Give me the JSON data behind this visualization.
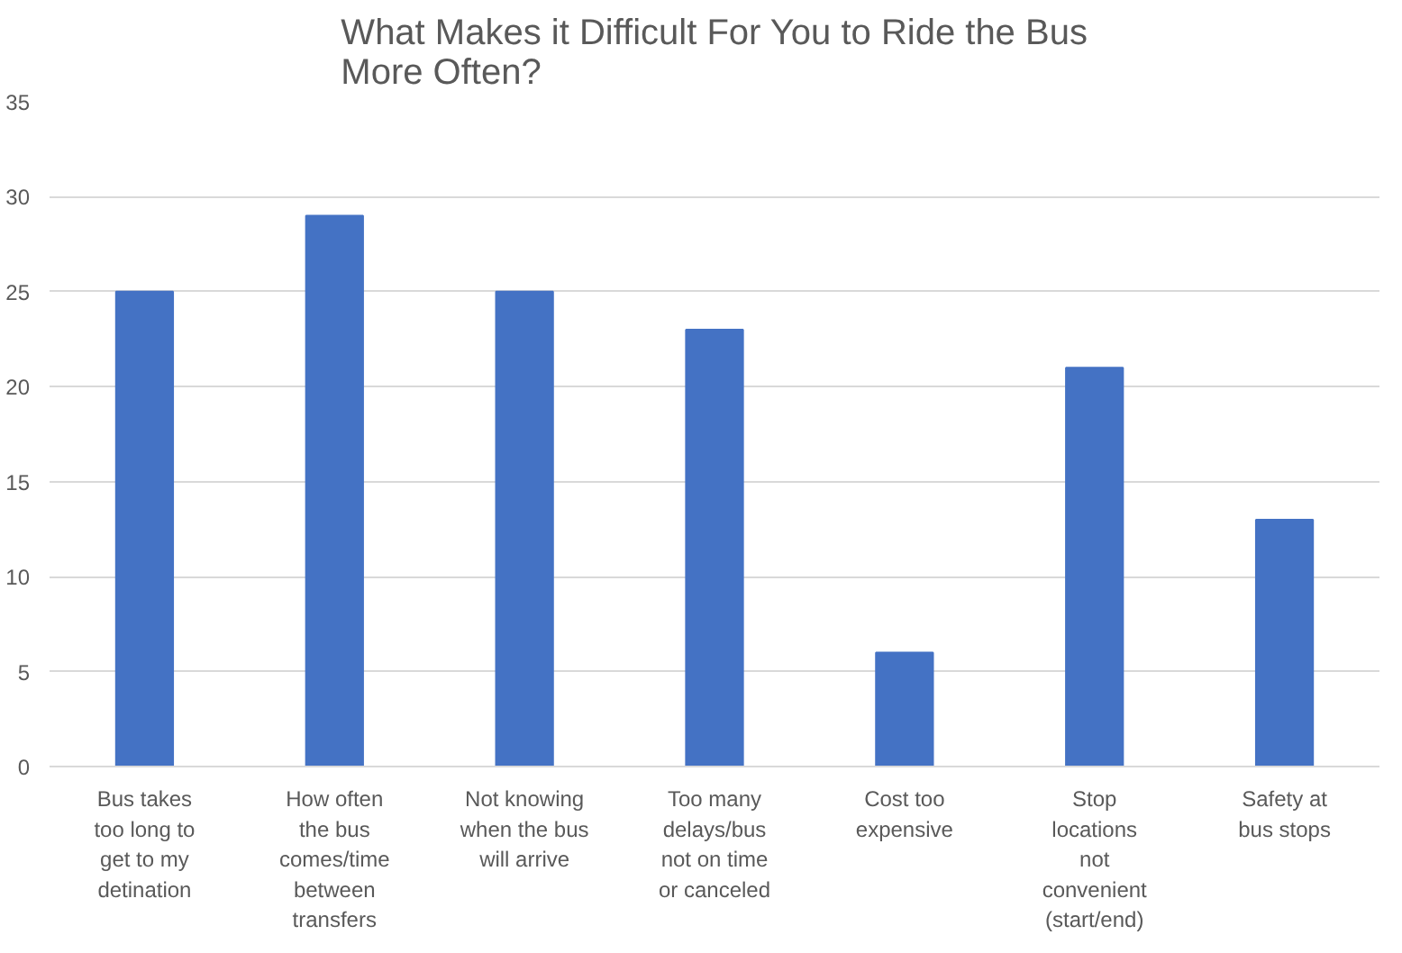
{
  "chart_data": {
    "type": "bar",
    "title": "What Makes it Difficult For You to Ride the Bus More Often?",
    "categories": [
      "Bus takes too long to get to my detination",
      "How often the bus comes/time between transfers",
      "Not knowing when the bus will arrive",
      "Too many delays/bus not on time or canceled",
      "Cost too expensive",
      "Stop locations not convenient (start/end)",
      "Safety at bus stops"
    ],
    "values": [
      25,
      29,
      25,
      23,
      6,
      21,
      13
    ],
    "color": "#4472c4",
    "ylim": [
      0,
      35
    ],
    "yticks": [
      0,
      5,
      10,
      15,
      20,
      25,
      30,
      35
    ],
    "grid": "y"
  }
}
